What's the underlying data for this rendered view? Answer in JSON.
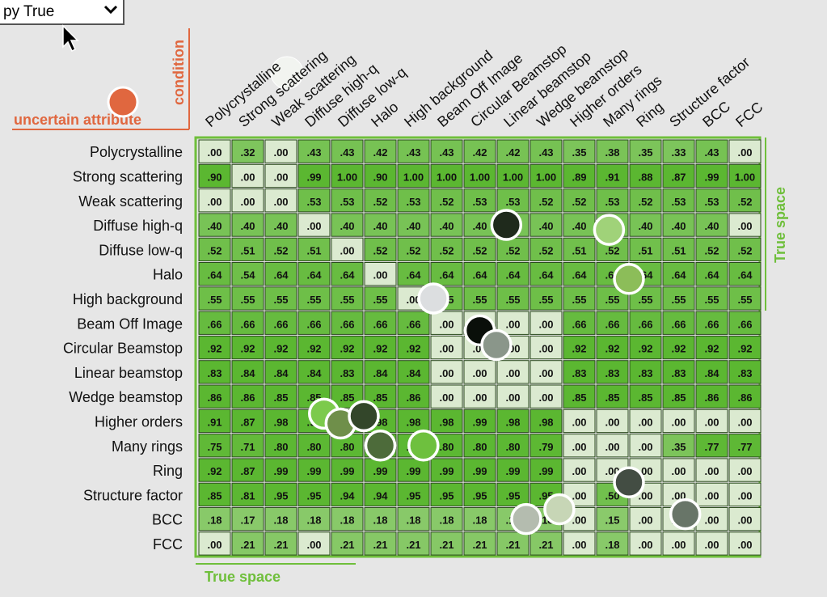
{
  "dropdown": {
    "selected": "py True"
  },
  "legend": {
    "condition_label": "condition",
    "uncertain_label": "uncertain attribute"
  },
  "colors": {
    "label_orange": "#e0673f",
    "axis_green": "#6fbf3b",
    "cell_low": "#dbead0",
    "cell_high": "#5bb731"
  },
  "chart_data": {
    "type": "heatmap",
    "row_labels": [
      "Polycrystalline",
      "Strong scattering",
      "Weak scattering",
      "Diffuse high-q",
      "Diffuse low-q",
      "Halo",
      "High background",
      "Beam Off Image",
      "Circular Beamstop",
      "Linear beamstop",
      "Wedge beamstop",
      "Higher orders",
      "Many rings",
      "Ring",
      "Structure factor",
      "BCC",
      "FCC"
    ],
    "col_labels": [
      "Polycrystalline",
      "Strong scattering",
      "Weak scattering",
      "Diffuse high-q",
      "Diffuse low-q",
      "Halo",
      "High background",
      "Beam Off Image",
      "Circular Beamstop",
      "Linear beamstop",
      "Wedge beamstop",
      "Higher orders",
      "Many rings",
      "Ring",
      "Structure factor",
      "BCC",
      "FCC"
    ],
    "x_axis_label": "True space",
    "y_axis_label": "True space",
    "values": [
      [
        ".00",
        ".32",
        ".00",
        ".43",
        ".43",
        ".42",
        ".43",
        ".43",
        ".42",
        ".42",
        ".43",
        ".35",
        ".38",
        ".35",
        ".33",
        ".43",
        ".00"
      ],
      [
        ".90",
        ".00",
        ".00",
        ".99",
        "1.00",
        ".90",
        "1.00",
        "1.00",
        "1.00",
        "1.00",
        "1.00",
        ".89",
        ".91",
        ".88",
        ".87",
        ".99",
        "1.00"
      ],
      [
        ".00",
        ".00",
        ".00",
        ".53",
        ".53",
        ".52",
        ".53",
        ".52",
        ".53",
        ".53",
        ".52",
        ".52",
        ".53",
        ".52",
        ".53",
        ".53",
        ".52"
      ],
      [
        ".40",
        ".40",
        ".40",
        ".00",
        ".40",
        ".40",
        ".40",
        ".40",
        ".40",
        ".40",
        ".40",
        ".40",
        ".40",
        ".40",
        ".40",
        ".40",
        ".00"
      ],
      [
        ".52",
        ".51",
        ".52",
        ".51",
        ".00",
        ".52",
        ".52",
        ".52",
        ".52",
        ".52",
        ".52",
        ".51",
        ".52",
        ".51",
        ".51",
        ".52",
        ".52"
      ],
      [
        ".64",
        ".54",
        ".64",
        ".64",
        ".64",
        ".00",
        ".64",
        ".64",
        ".64",
        ".64",
        ".64",
        ".64",
        ".64",
        ".64",
        ".64",
        ".64",
        ".64"
      ],
      [
        ".55",
        ".55",
        ".55",
        ".55",
        ".55",
        ".55",
        ".00",
        ".55",
        ".55",
        ".55",
        ".55",
        ".55",
        ".55",
        ".55",
        ".55",
        ".55",
        ".55"
      ],
      [
        ".66",
        ".66",
        ".66",
        ".66",
        ".66",
        ".66",
        ".66",
        ".00",
        ".00",
        ".00",
        ".00",
        ".66",
        ".66",
        ".66",
        ".66",
        ".66",
        ".66"
      ],
      [
        ".92",
        ".92",
        ".92",
        ".92",
        ".92",
        ".92",
        ".92",
        ".00",
        ".00",
        ".00",
        ".00",
        ".92",
        ".92",
        ".92",
        ".92",
        ".92",
        ".92"
      ],
      [
        ".83",
        ".84",
        ".84",
        ".84",
        ".83",
        ".84",
        ".84",
        ".00",
        ".00",
        ".00",
        ".00",
        ".83",
        ".83",
        ".83",
        ".83",
        ".84",
        ".83"
      ],
      [
        ".86",
        ".86",
        ".85",
        ".85",
        ".85",
        ".85",
        ".86",
        ".00",
        ".00",
        ".00",
        ".00",
        ".85",
        ".85",
        ".85",
        ".85",
        ".86",
        ".86"
      ],
      [
        ".91",
        ".87",
        ".98",
        ".98",
        ".98",
        ".98",
        ".98",
        ".98",
        ".99",
        ".98",
        ".98",
        ".00",
        ".00",
        ".00",
        ".00",
        ".00",
        ".00"
      ],
      [
        ".75",
        ".71",
        ".80",
        ".80",
        ".80",
        ".80",
        ".80",
        ".80",
        ".80",
        ".80",
        ".79",
        ".00",
        ".00",
        ".00",
        ".35",
        ".77",
        ".77"
      ],
      [
        ".92",
        ".87",
        ".99",
        ".99",
        ".99",
        ".99",
        ".99",
        ".99",
        ".99",
        ".99",
        ".99",
        ".00",
        ".00",
        ".00",
        ".00",
        ".00",
        ".00"
      ],
      [
        ".85",
        ".81",
        ".95",
        ".95",
        ".94",
        ".94",
        ".95",
        ".95",
        ".95",
        ".95",
        ".95",
        ".00",
        ".50",
        ".00",
        ".00",
        ".00",
        ".00"
      ],
      [
        ".18",
        ".17",
        ".18",
        ".18",
        ".18",
        ".18",
        ".18",
        ".18",
        ".18",
        ".18",
        ".18",
        ".00",
        ".15",
        ".00",
        ".00",
        ".00",
        ".00"
      ],
      [
        ".00",
        ".21",
        ".21",
        ".00",
        ".21",
        ".21",
        ".21",
        ".21",
        ".21",
        ".21",
        ".21",
        ".00",
        ".18",
        ".00",
        ".00",
        ".00",
        ".00"
      ]
    ],
    "markers": [
      {
        "row": 3.0,
        "col": 8.8,
        "color": "#1f2a1c"
      },
      {
        "row": 3.2,
        "col": 11.9,
        "color": "#a0d279"
      },
      {
        "row": 5.2,
        "col": 12.5,
        "color": "#8cbd59"
      },
      {
        "row": 6.0,
        "col": 6.6,
        "color": "#dcdee0"
      },
      {
        "row": 7.3,
        "col": 8.0,
        "color": "#0a0f0a"
      },
      {
        "row": 7.9,
        "col": 8.5,
        "color": "#8a968a"
      },
      {
        "row": 10.7,
        "col": 3.3,
        "color": "#7cca4c"
      },
      {
        "row": 11.1,
        "col": 3.8,
        "color": "#6f8f4a"
      },
      {
        "row": 10.8,
        "col": 4.5,
        "color": "#33462a"
      },
      {
        "row": 12.0,
        "col": 5.0,
        "color": "#4d6b3a"
      },
      {
        "row": 12.0,
        "col": 6.3,
        "color": "#6ec03e"
      },
      {
        "row": 13.5,
        "col": 12.5,
        "color": "#434d43"
      },
      {
        "row": 14.6,
        "col": 10.4,
        "color": "#c7d6b6"
      },
      {
        "row": 15.0,
        "col": 9.4,
        "color": "#b4bcaf"
      },
      {
        "row": 14.8,
        "col": 14.2,
        "color": "#687568"
      }
    ],
    "legend_marker_color": "#e0673f",
    "legend_marker_top_color": "#f2f4f0"
  }
}
